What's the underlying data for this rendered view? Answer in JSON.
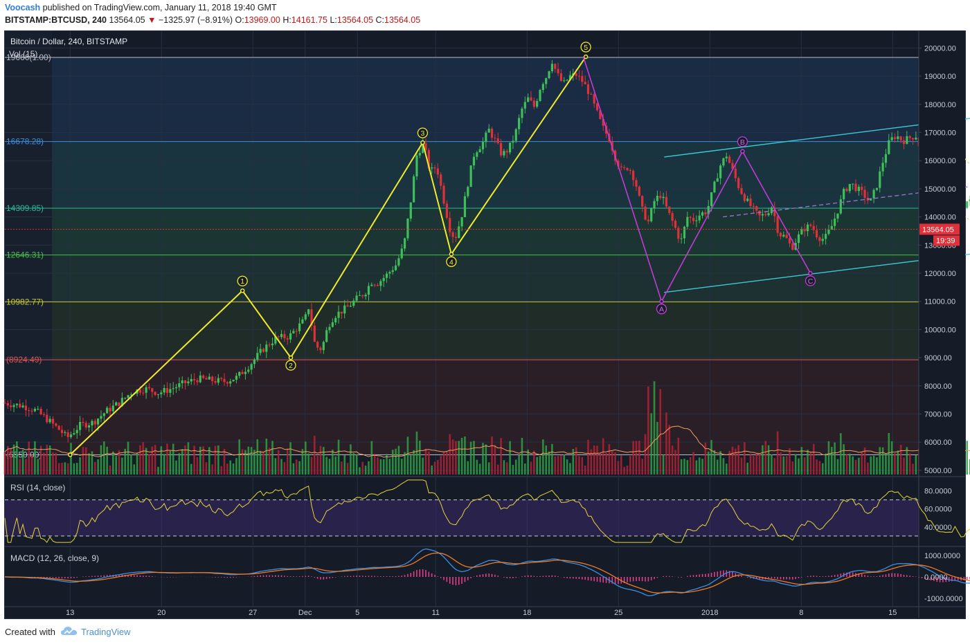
{
  "header": {
    "author": "Voocash",
    "published": "published on TradingView.com, January 11, 2018 19:40 GMT",
    "symbol": "BITSTAMP:BTCUSD, 240",
    "price": "13564.05",
    "change_arrow": "▼",
    "change": "−1325.97 (−8.91%)",
    "o_label": "O:",
    "o_val": "13969.00",
    "h_label": "H:",
    "h_val": "14161.75",
    "l_label": "L:",
    "l_val": "13564.05",
    "c_label": "C:",
    "c_val": "13564.05"
  },
  "footer": {
    "created_with": "Created with",
    "brand": "TradingView"
  },
  "chart_data": [
    {
      "type": "candlestick",
      "title": "Bitcoin / Dollar, 240, BITSTAMP",
      "volume_label": "Vol (15)",
      "y_ticks": [
        5000,
        6000,
        7000,
        8000,
        9000,
        10000,
        11000,
        12000,
        13000,
        14000,
        15000,
        16000,
        17000,
        18000,
        19000,
        20000
      ],
      "y_tick_labels": [
        "5000.00",
        "6000.00",
        "7000.00",
        "8000.00",
        "9000.00",
        "10000.00",
        "11000.00",
        "12000.00",
        "13000.00",
        "14000.00",
        "15000.00",
        "16000.00",
        "17000.00",
        "18000.00",
        "19000.00",
        "20000.00"
      ],
      "ylim": [
        4800,
        20600
      ],
      "x_ticks": [
        13,
        20,
        27,
        "Dec",
        5,
        11,
        18,
        25,
        "2018",
        8,
        15
      ],
      "x_tick_labels": [
        "13",
        "20",
        "27",
        "Dec",
        "5",
        "11",
        "18",
        "25",
        "2018",
        "8",
        "15"
      ],
      "x_tick_days": [
        13,
        20,
        27,
        31,
        35,
        41,
        48,
        55,
        62,
        69,
        76
      ],
      "days_start": 8,
      "days_end": 78,
      "fib_levels": [
        {
          "value": 19666,
          "label": "19666(1.00)",
          "color": "#b8bcc8"
        },
        {
          "value": 16678.28,
          "label": "16678.28)",
          "color": "#3e8ed8"
        },
        {
          "value": 14309.85,
          "label": "14309.85)",
          "color": "#2bb89a"
        },
        {
          "value": 12646.31,
          "label": "12646.31)",
          "color": "#4cbf4c"
        },
        {
          "value": 10982.77,
          "label": "10982.77)",
          "color": "#c7c92e"
        },
        {
          "value": 8924.49,
          "label": "(8924.49)",
          "color": "#e05555"
        },
        {
          "value": 5550,
          "label": "(5550.00)",
          "color": "#b8bcc8"
        }
      ],
      "last_price": "13564.05",
      "last_price_value": 13564.05,
      "countdown": "19:39",
      "wave_points": [
        {
          "label": "1",
          "day": 26.2,
          "value": 11380
        },
        {
          "label": "2",
          "day": 29.9,
          "value": 9000
        },
        {
          "label": "3",
          "day": 40.0,
          "value": 16640
        },
        {
          "label": "4",
          "day": 42.2,
          "value": 12680
        },
        {
          "label": "5",
          "day": 52.5,
          "value": 19690
        }
      ],
      "wave_start": {
        "day": 13.0,
        "value": 5550
      },
      "abc_points": [
        {
          "label": "A",
          "day": 58.3,
          "value": 11000
        },
        {
          "label": "B",
          "day": 64.5,
          "value": 16330
        },
        {
          "label": "C",
          "day": 69.7,
          "value": 12000
        }
      ],
      "abc_start": {
        "day": 52.3,
        "value": 19700
      },
      "channel_upper": [
        {
          "day": 58.5,
          "value": 16130
        },
        {
          "day": 92.0,
          "value": 18090
        }
      ],
      "channel_lower": [
        {
          "day": 58.5,
          "value": 11320
        },
        {
          "day": 92.0,
          "value": 13260
        }
      ],
      "channel_mid": [
        {
          "day": 63.0,
          "value": 14000
        },
        {
          "day": 92.0,
          "value": 15650
        }
      ],
      "wedge_upper": [
        {
          "day": 79.5,
          "value": 17200
        },
        {
          "day": 87.8,
          "value": 12600
        }
      ],
      "wedge_lower": [
        {
          "day": 78.3,
          "value": 15050
        },
        {
          "day": 86.7,
          "value": 12350
        }
      ],
      "price_path": [
        [
          8,
          7400
        ],
        [
          9.5,
          7300
        ],
        [
          10.5,
          7150
        ],
        [
          11.5,
          6800
        ],
        [
          12.5,
          6400
        ],
        [
          13,
          6150
        ],
        [
          14,
          6600
        ],
        [
          15,
          6700
        ],
        [
          16,
          7100
        ],
        [
          17,
          7400
        ],
        [
          18,
          7800
        ],
        [
          19,
          7900
        ],
        [
          20,
          7750
        ],
        [
          21,
          7900
        ],
        [
          22,
          8100
        ],
        [
          23,
          8250
        ],
        [
          24,
          8200
        ],
        [
          25,
          8150
        ],
        [
          26,
          8300
        ],
        [
          27,
          8750
        ],
        [
          28,
          9300
        ],
        [
          29,
          9700
        ],
        [
          30,
          9750
        ],
        [
          31.2,
          10350
        ],
        [
          31.5,
          10800
        ],
        [
          32,
          9400
        ],
        [
          32.5,
          9300
        ],
        [
          33,
          10150
        ],
        [
          33.5,
          10500
        ],
        [
          34.5,
          10800
        ],
        [
          35.2,
          11100
        ],
        [
          35.8,
          11300
        ],
        [
          36.3,
          11700
        ],
        [
          36.8,
          11650
        ],
        [
          37.5,
          11950
        ],
        [
          38.2,
          12300
        ],
        [
          38.8,
          13000
        ],
        [
          39.3,
          14500
        ],
        [
          39.8,
          16250
        ],
        [
          40.3,
          16600
        ],
        [
          40.8,
          15600
        ],
        [
          41.3,
          15800
        ],
        [
          41.8,
          14700
        ],
        [
          42.3,
          13600
        ],
        [
          42.7,
          13200
        ],
        [
          43.2,
          14000
        ],
        [
          43.7,
          15200
        ],
        [
          44.2,
          16300
        ],
        [
          44.8,
          16600
        ],
        [
          45.3,
          17100
        ],
        [
          45.8,
          16700
        ],
        [
          46.3,
          16200
        ],
        [
          46.8,
          16400
        ],
        [
          47.3,
          16900
        ],
        [
          47.8,
          17800
        ],
        [
          48.3,
          18200
        ],
        [
          48.8,
          17900
        ],
        [
          49.3,
          18700
        ],
        [
          49.8,
          19050
        ],
        [
          50.1,
          19600
        ],
        [
          50.5,
          19100
        ],
        [
          51,
          18700
        ],
        [
          51.5,
          19000
        ],
        [
          52,
          19050
        ],
        [
          52.5,
          18800
        ],
        [
          53,
          18400
        ],
        [
          53.5,
          17800
        ],
        [
          54,
          17200
        ],
        [
          54.5,
          16800
        ],
        [
          55,
          16100
        ],
        [
          55.5,
          15600
        ],
        [
          56,
          15800
        ],
        [
          56.5,
          15300
        ],
        [
          57,
          14300
        ],
        [
          57.5,
          13800
        ],
        [
          58,
          14600
        ],
        [
          58.5,
          14800
        ],
        [
          59,
          14200
        ],
        [
          59.5,
          13700
        ],
        [
          60,
          13100
        ],
        [
          60.5,
          14000
        ],
        [
          61,
          13900
        ],
        [
          61.5,
          14100
        ],
        [
          62,
          14200
        ],
        [
          62.5,
          15000
        ],
        [
          63,
          15800
        ],
        [
          63.5,
          16200
        ],
        [
          64,
          15600
        ],
        [
          64.5,
          15000
        ],
        [
          65,
          14600
        ],
        [
          65.5,
          14300
        ],
        [
          66,
          14000
        ],
        [
          66.5,
          14100
        ],
        [
          67,
          14400
        ],
        [
          67.5,
          13400
        ],
        [
          68,
          13300
        ],
        [
          68.5,
          12900
        ],
        [
          69,
          13300
        ],
        [
          69.5,
          13600
        ],
        [
          70,
          13700
        ],
        [
          70.5,
          13300
        ],
        [
          71,
          13200
        ],
        [
          71.5,
          13600
        ],
        [
          72,
          14200
        ],
        [
          72.5,
          14900
        ],
        [
          73,
          15200
        ],
        [
          73.5,
          15000
        ],
        [
          74,
          14800
        ],
        [
          74.5,
          14500
        ],
        [
          75,
          15100
        ],
        [
          75.5,
          16000
        ],
        [
          76,
          16700
        ],
        [
          76.5,
          16900
        ],
        [
          77,
          16700
        ],
        [
          77.5,
          16800
        ],
        [
          78,
          16900
        ],
        [
          78.5,
          16200
        ],
        [
          79,
          15800
        ],
        [
          79.5,
          15200
        ],
        [
          80,
          14900
        ],
        [
          80.5,
          14800
        ],
        [
          81,
          15000
        ],
        [
          81.5,
          14300
        ],
        [
          82,
          14600
        ],
        [
          82.5,
          14400
        ],
        [
          83,
          13900
        ],
        [
          83.5,
          13600
        ],
        [
          84,
          13564.05
        ]
      ],
      "rsi": {
        "label": "RSI (14, close)",
        "y_ticks": [
          40,
          60,
          80
        ],
        "y_tick_labels": [
          "40.0000",
          "60.0000",
          "80.0000"
        ],
        "ylim": [
          20,
          95
        ],
        "band": [
          30,
          70
        ],
        "color": "#e6d53a"
      },
      "macd": {
        "label": "MACD (12, 26, close, 9)",
        "y_ticks": [
          -1000,
          0,
          1000
        ],
        "y_tick_labels": [
          "-1000.0000",
          "0.0000",
          "1000.0000"
        ],
        "ylim": [
          -1350,
          1350
        ],
        "macd_color": "#3a8fe6",
        "signal_color": "#f07b26",
        "hist_color": "#e0408a"
      }
    }
  ],
  "axis_colors": {
    "grid": "#263043",
    "axis_text": "#c9ccd6"
  },
  "icons": [
    "tradingview-cloud-icon"
  ]
}
